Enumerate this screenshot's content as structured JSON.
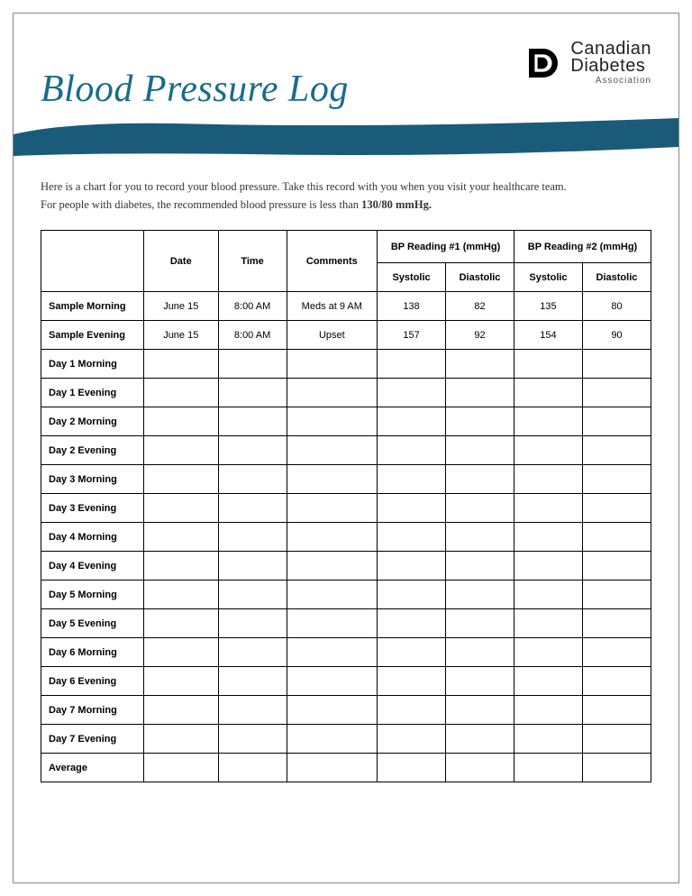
{
  "title": "Blood Pressure Log",
  "org": {
    "name1": "Canadian",
    "name2": "Diabetes",
    "sub": "Association"
  },
  "banner_color": "#1a5b7a",
  "intro": {
    "line1": "Here is a chart for you to record your blood pressure. Take this record with you when you visit your healthcare team.",
    "line2a": "For people with diabetes, the recommended blood pressure is less than ",
    "line2b": "130/80 mmHg."
  },
  "headers": {
    "date": "Date",
    "time": "Time",
    "comments": "Comments",
    "bp1": "BP Reading #1 (mmHg)",
    "bp2": "BP Reading #2 (mmHg)",
    "sys": "Systolic",
    "dia": "Diastolic"
  },
  "rows": [
    {
      "label": "Sample Morning",
      "date": "June 15",
      "time": "8:00 AM",
      "comments": "Meds at 9 AM",
      "s1": "138",
      "d1": "82",
      "s2": "135",
      "d2": "80"
    },
    {
      "label": "Sample Evening",
      "date": "June 15",
      "time": "8:00 AM",
      "comments": "Upset",
      "s1": "157",
      "d1": "92",
      "s2": "154",
      "d2": "90"
    },
    {
      "label": "Day 1 Morning",
      "date": "",
      "time": "",
      "comments": "",
      "s1": "",
      "d1": "",
      "s2": "",
      "d2": ""
    },
    {
      "label": "Day 1 Evening",
      "date": "",
      "time": "",
      "comments": "",
      "s1": "",
      "d1": "",
      "s2": "",
      "d2": ""
    },
    {
      "label": "Day 2 Morning",
      "date": "",
      "time": "",
      "comments": "",
      "s1": "",
      "d1": "",
      "s2": "",
      "d2": ""
    },
    {
      "label": "Day 2 Evening",
      "date": "",
      "time": "",
      "comments": "",
      "s1": "",
      "d1": "",
      "s2": "",
      "d2": ""
    },
    {
      "label": "Day 3 Morning",
      "date": "",
      "time": "",
      "comments": "",
      "s1": "",
      "d1": "",
      "s2": "",
      "d2": ""
    },
    {
      "label": "Day 3 Evening",
      "date": "",
      "time": "",
      "comments": "",
      "s1": "",
      "d1": "",
      "s2": "",
      "d2": ""
    },
    {
      "label": "Day 4 Morning",
      "date": "",
      "time": "",
      "comments": "",
      "s1": "",
      "d1": "",
      "s2": "",
      "d2": ""
    },
    {
      "label": "Day 4 Evening",
      "date": "",
      "time": "",
      "comments": "",
      "s1": "",
      "d1": "",
      "s2": "",
      "d2": ""
    },
    {
      "label": "Day 5 Morning",
      "date": "",
      "time": "",
      "comments": "",
      "s1": "",
      "d1": "",
      "s2": "",
      "d2": ""
    },
    {
      "label": "Day 5 Evening",
      "date": "",
      "time": "",
      "comments": "",
      "s1": "",
      "d1": "",
      "s2": "",
      "d2": ""
    },
    {
      "label": "Day 6 Morning",
      "date": "",
      "time": "",
      "comments": "",
      "s1": "",
      "d1": "",
      "s2": "",
      "d2": ""
    },
    {
      "label": "Day 6 Evening",
      "date": "",
      "time": "",
      "comments": "",
      "s1": "",
      "d1": "",
      "s2": "",
      "d2": ""
    },
    {
      "label": "Day 7 Morning",
      "date": "",
      "time": "",
      "comments": "",
      "s1": "",
      "d1": "",
      "s2": "",
      "d2": ""
    },
    {
      "label": "Day 7 Evening",
      "date": "",
      "time": "",
      "comments": "",
      "s1": "",
      "d1": "",
      "s2": "",
      "d2": ""
    },
    {
      "label": "Average",
      "date": "",
      "time": "",
      "comments": "",
      "s1": "",
      "d1": "",
      "s2": "",
      "d2": ""
    }
  ]
}
